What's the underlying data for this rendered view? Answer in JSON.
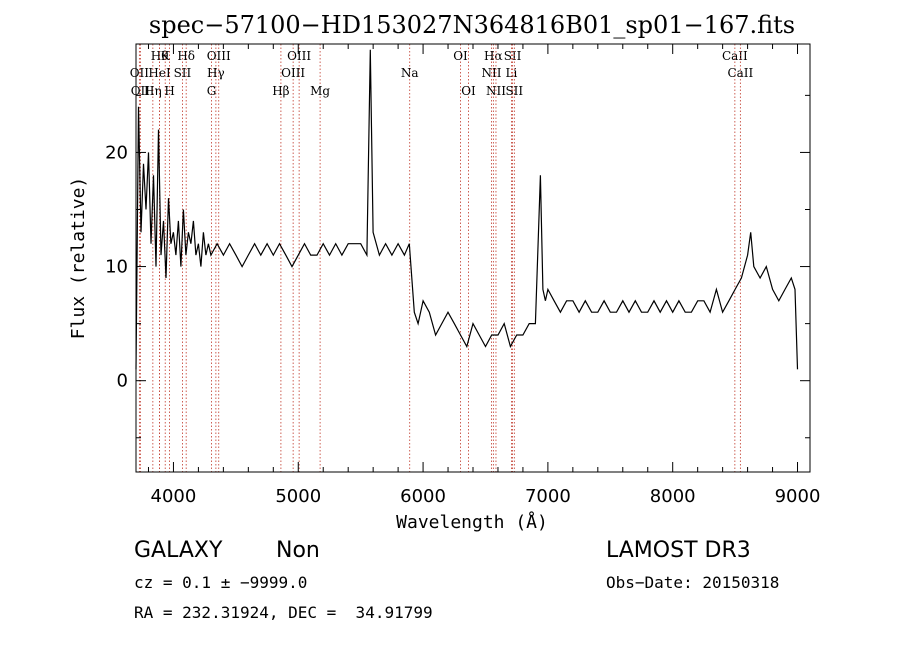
{
  "chart_data": {
    "type": "line",
    "title": "spec−57100−HD153027N364816B01_sp01−167.fits",
    "xlabel": "Wavelength (Å)",
    "ylabel": "Flux (relative)",
    "xlim": [
      3700,
      9100
    ],
    "ylim": [
      -8,
      29.5
    ],
    "xticks": [
      4000,
      5000,
      6000,
      7000,
      8000,
      9000
    ],
    "yticks": [
      0,
      10,
      20
    ],
    "grid": false,
    "series": [
      {
        "x": [
          3700,
          3720,
          3740,
          3760,
          3780,
          3800,
          3820,
          3840,
          3860,
          3880,
          3900,
          3920,
          3940,
          3960,
          3980,
          4000,
          4020,
          4040,
          4060,
          4080,
          4100,
          4120,
          4140,
          4160,
          4180,
          4200,
          4220,
          4240,
          4260,
          4280,
          4300,
          4350,
          4400,
          4450,
          4500,
          4550,
          4600,
          4650,
          4700,
          4750,
          4800,
          4850,
          4900,
          4950,
          5000,
          5050,
          5100,
          5150,
          5200,
          5250,
          5300,
          5350,
          5400,
          5450,
          5500,
          5550,
          5577,
          5600,
          5650,
          5700,
          5750,
          5800,
          5850,
          5890,
          5930,
          5960,
          6000,
          6050,
          6100,
          6150,
          6200,
          6250,
          6300,
          6350,
          6400,
          6450,
          6500,
          6550,
          6600,
          6650,
          6700,
          6750,
          6800,
          6850,
          6900,
          6940,
          6960,
          6980,
          7000,
          7050,
          7100,
          7150,
          7200,
          7250,
          7300,
          7350,
          7400,
          7450,
          7500,
          7550,
          7600,
          7650,
          7700,
          7750,
          7800,
          7850,
          7900,
          7950,
          8000,
          8050,
          8100,
          8150,
          8200,
          8250,
          8300,
          8350,
          8400,
          8450,
          8500,
          8550,
          8600,
          8625,
          8650,
          8700,
          8750,
          8800,
          8850,
          8900,
          8950,
          8980,
          9000
        ],
        "values": [
          1,
          24,
          13,
          19,
          15,
          20,
          12,
          18,
          10,
          22,
          11,
          14,
          9,
          16,
          12,
          13,
          11,
          14,
          10,
          15,
          11,
          13,
          12,
          14,
          11,
          12,
          10,
          13,
          11,
          12,
          11,
          12,
          11,
          12,
          11,
          10,
          11,
          12,
          11,
          12,
          11,
          12,
          11,
          10,
          11,
          12,
          11,
          11,
          12,
          11,
          12,
          11,
          12,
          12,
          12,
          11,
          29,
          13,
          11,
          12,
          11,
          12,
          11,
          12,
          6,
          5,
          7,
          6,
          4,
          5,
          6,
          5,
          4,
          3,
          5,
          4,
          3,
          4,
          4,
          5,
          3,
          4,
          4,
          5,
          5,
          18,
          8,
          7,
          8,
          7,
          6,
          7,
          7,
          6,
          7,
          6,
          6,
          7,
          6,
          6,
          7,
          6,
          7,
          6,
          6,
          7,
          6,
          7,
          6,
          7,
          6,
          6,
          7,
          7,
          6,
          8,
          6,
          7,
          8,
          9,
          11,
          13,
          10,
          9,
          10,
          8,
          7,
          8,
          9,
          8,
          1
        ]
      }
    ],
    "line_markers": [
      {
        "wave": 3727,
        "label": "OII",
        "row": 2
      },
      {
        "wave": 3735,
        "label": "OII",
        "row": 3
      },
      {
        "wave": 3835,
        "label": "Hη",
        "row": 3
      },
      {
        "wave": 3889,
        "label": "Hθ",
        "row": 1
      },
      {
        "wave": 3889,
        "label": "HeI",
        "row": 2
      },
      {
        "wave": 3934,
        "label": "K",
        "row": 1
      },
      {
        "wave": 3969,
        "label": "H",
        "row": 3
      },
      {
        "wave": 4072,
        "label": "SII",
        "row": 2
      },
      {
        "wave": 4102,
        "label": "Hδ",
        "row": 1
      },
      {
        "wave": 4305,
        "label": "G",
        "row": 3
      },
      {
        "wave": 4340,
        "label": "Hγ",
        "row": 2
      },
      {
        "wave": 4363,
        "label": "OIII",
        "row": 1
      },
      {
        "wave": 4861,
        "label": "Hβ",
        "row": 3
      },
      {
        "wave": 4959,
        "label": "OIII",
        "row": 2
      },
      {
        "wave": 5007,
        "label": "OIII",
        "row": 1
      },
      {
        "wave": 5175,
        "label": "Mg",
        "row": 3
      },
      {
        "wave": 5893,
        "label": "Na",
        "row": 2
      },
      {
        "wave": 6300,
        "label": "OI",
        "row": 1
      },
      {
        "wave": 6364,
        "label": "OI",
        "row": 3
      },
      {
        "wave": 6548,
        "label": "NII",
        "row": 2
      },
      {
        "wave": 6563,
        "label": "Hα",
        "row": 1
      },
      {
        "wave": 6584,
        "label": "NII",
        "row": 3
      },
      {
        "wave": 6708,
        "label": "Li",
        "row": 2
      },
      {
        "wave": 6717,
        "label": "SII",
        "row": 1
      },
      {
        "wave": 6731,
        "label": "SII",
        "row": 3
      },
      {
        "wave": 8498,
        "label": "CaII",
        "row": 1
      },
      {
        "wave": 8542,
        "label": "CaII",
        "row": 2
      }
    ]
  },
  "info": {
    "class": "GALAXY",
    "subclass": "Non",
    "survey": "LAMOST DR3",
    "cz": "cz = 0.1 ± −9999.0",
    "obsdate": "Obs−Date: 20150318",
    "coords": "RA = 232.31924, DEC =  34.91799"
  }
}
